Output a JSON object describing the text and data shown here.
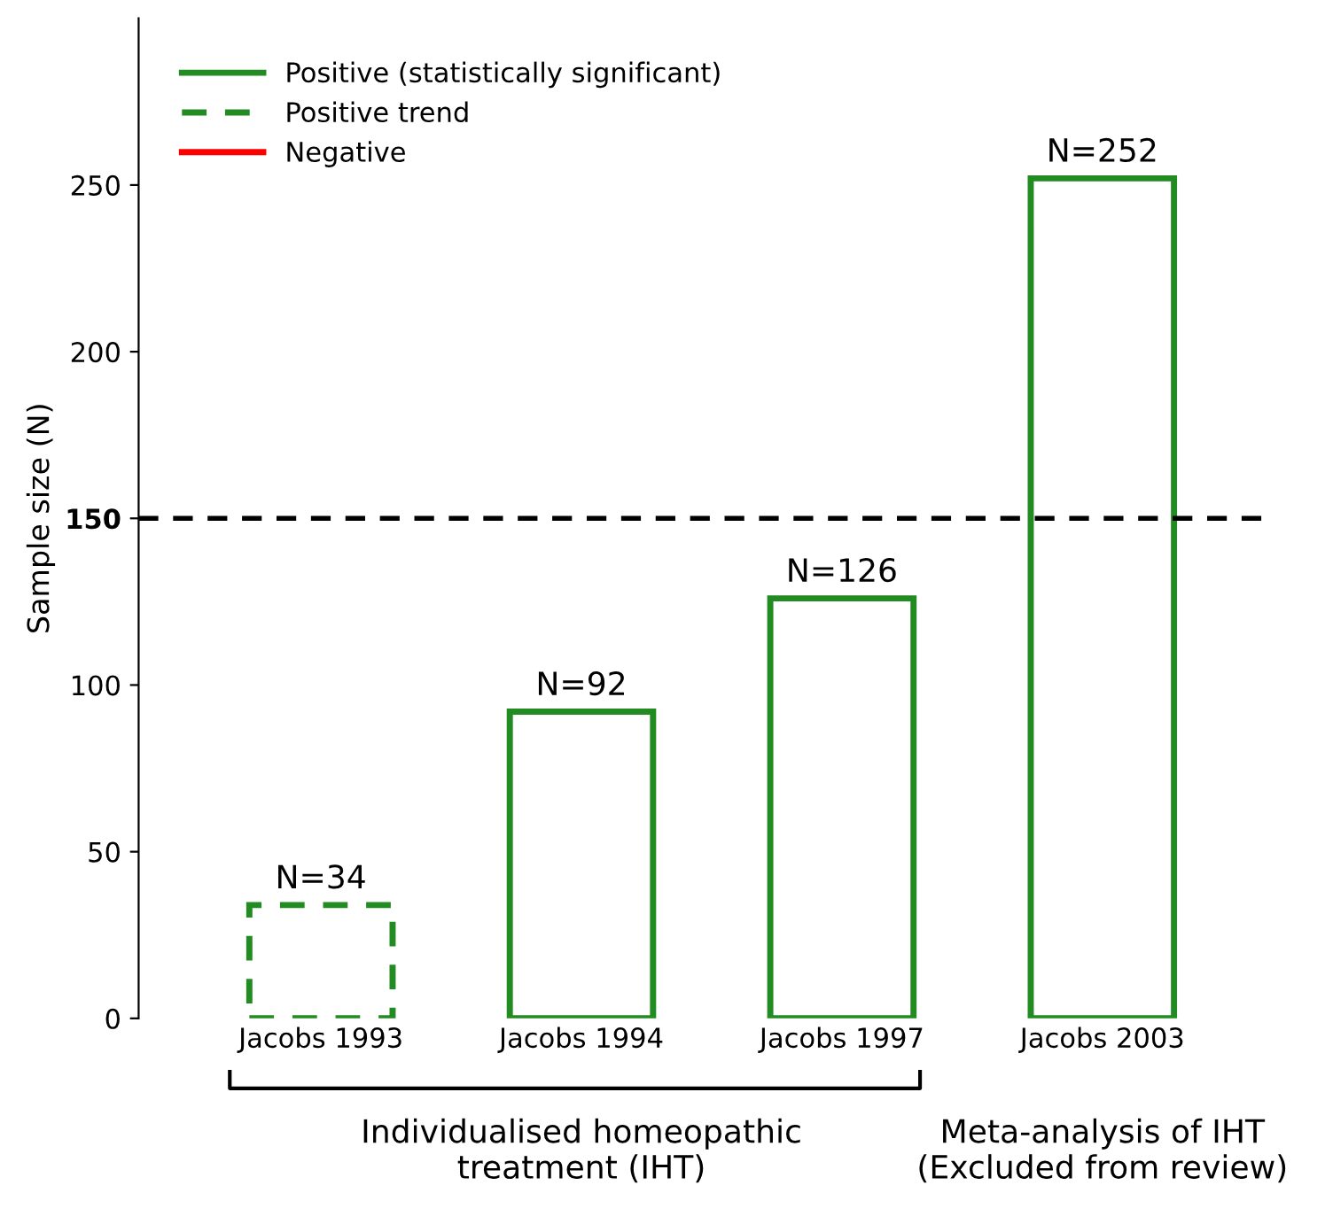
{
  "chart_data": {
    "type": "bar",
    "ylabel": "Sample size (N)",
    "categories": [
      "Jacobs 1993",
      "Jacobs 1994",
      "Jacobs 1997",
      "Jacobs 2003"
    ],
    "series": [
      {
        "name": "Positive (statistically significant)",
        "color": "#228b22",
        "line_style": "solid",
        "values": [
          null,
          92,
          126,
          252
        ],
        "value_labels": [
          null,
          "N=92",
          "N=126",
          "N=252"
        ]
      },
      {
        "name": "Positive trend",
        "color": "#228b22",
        "line_style": "dashed",
        "values": [
          34,
          null,
          null,
          null
        ],
        "value_labels": [
          "N=34",
          null,
          null,
          null
        ]
      },
      {
        "name": "Negative",
        "color": "#ff0000",
        "line_style": "solid",
        "values": [
          null,
          null,
          null,
          null
        ]
      }
    ],
    "ylim": [
      0,
      300
    ],
    "yticks": [
      0,
      50,
      100,
      150,
      200,
      250
    ],
    "ref_lines": [
      {
        "axis": "y",
        "value": 150,
        "color": "#000000",
        "line_style": "dashed"
      }
    ],
    "annotations": [
      "Individualised homeopathic\ntreatment (IHT)",
      "Meta-analysis of IHT\n(Excluded from review)"
    ],
    "legend": "top left",
    "grid": false
  }
}
